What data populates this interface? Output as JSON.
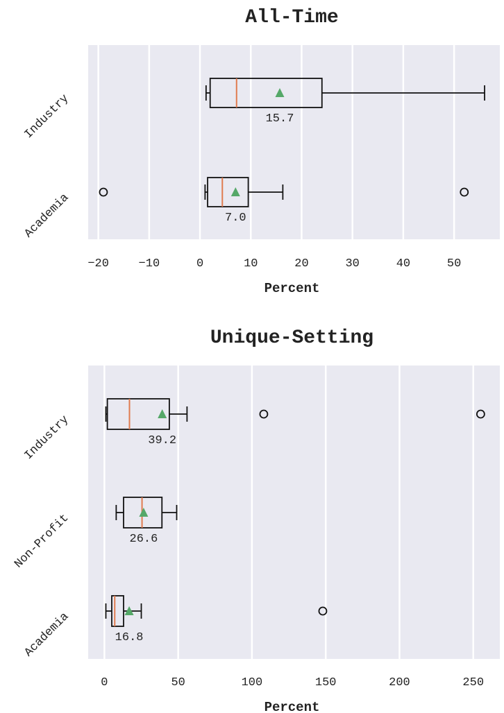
{
  "colors": {
    "plot_bg": "#e9e9f1",
    "grid": "#ffffff",
    "box": "#111111",
    "median": "#e07b4f",
    "mean": "#55a868"
  },
  "chart_data": [
    {
      "type": "boxplot",
      "orientation": "horizontal",
      "title": "All-Time",
      "xlabel": "Percent",
      "ylabel": "",
      "xlim": [
        -22,
        59
      ],
      "xticks": [
        -20,
        -10,
        0,
        10,
        20,
        30,
        40,
        50
      ],
      "xtick_labels": [
        "−20",
        "−10",
        "0",
        "10",
        "20",
        "30",
        "40",
        "50"
      ],
      "grid": true,
      "categories": [
        "Industry",
        "Academia"
      ],
      "series": [
        {
          "name": "Industry",
          "whisker_low": 1.2,
          "q1": 2.0,
          "median": 7.2,
          "q3": 24.0,
          "whisker_high": 56.0,
          "mean": 15.7,
          "mean_label": "15.7",
          "outliers": []
        },
        {
          "name": "Academia",
          "whisker_low": 1.0,
          "q1": 1.5,
          "median": 4.4,
          "q3": 9.5,
          "whisker_high": 16.3,
          "mean": 7.0,
          "mean_label": "7.0",
          "outliers": [
            -19.0,
            52.0
          ]
        }
      ]
    },
    {
      "type": "boxplot",
      "orientation": "horizontal",
      "title": "Unique-Setting",
      "xlabel": "Percent",
      "ylabel": "",
      "xlim": [
        -11,
        268
      ],
      "xticks": [
        0,
        50,
        100,
        150,
        200,
        250
      ],
      "xtick_labels": [
        "0",
        "50",
        "100",
        "150",
        "200",
        "250"
      ],
      "grid": true,
      "categories": [
        "Industry",
        "Non-Profit",
        "Academia"
      ],
      "series": [
        {
          "name": "Industry",
          "whisker_low": 1.0,
          "q1": 2.0,
          "median": 17.0,
          "q3": 44.0,
          "whisker_high": 56.0,
          "mean": 39.2,
          "mean_label": "39.2",
          "outliers": [
            108.0,
            255.0
          ]
        },
        {
          "name": "Non-Profit",
          "whisker_low": 8.0,
          "q1": 13.0,
          "median": 25.5,
          "q3": 39.0,
          "whisker_high": 49.0,
          "mean": 26.6,
          "mean_label": "26.6",
          "outliers": []
        },
        {
          "name": "Academia",
          "whisker_low": 1.0,
          "q1": 5.0,
          "median": 7.0,
          "q3": 13.0,
          "whisker_high": 25.0,
          "mean": 16.8,
          "mean_label": "16.8",
          "outliers": [
            148.0
          ]
        }
      ]
    }
  ]
}
